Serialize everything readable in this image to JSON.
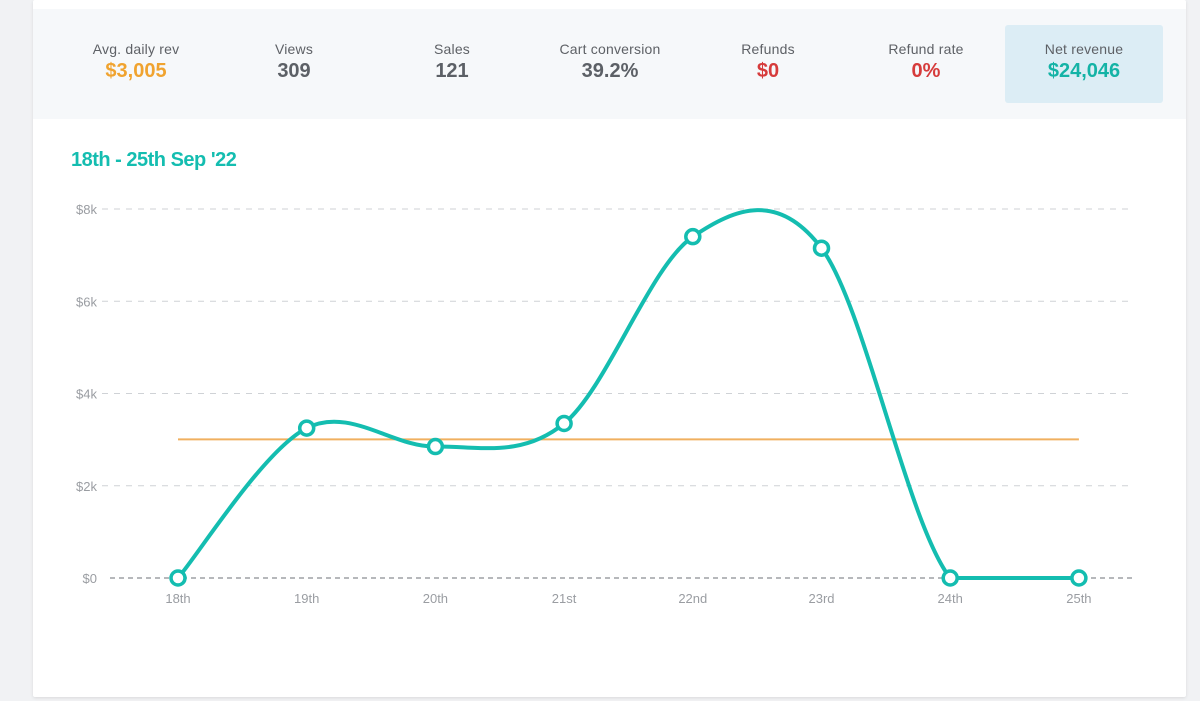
{
  "stats": [
    {
      "label": "Avg. daily rev",
      "value": "$3,005",
      "color": "#f0a32f"
    },
    {
      "label": "Views",
      "value": "309",
      "color": "#5c6066"
    },
    {
      "label": "Sales",
      "value": "121",
      "color": "#5c6066"
    },
    {
      "label": "Cart conversion",
      "value": "39.2%",
      "color": "#5c6066"
    },
    {
      "label": "Refunds",
      "value": "$0",
      "color": "#d63b3b"
    },
    {
      "label": "Refund rate",
      "value": "0%",
      "color": "#d63b3b"
    },
    {
      "label": "Net revenue",
      "value": "$24,046",
      "color": "#14b3a6",
      "active": true
    }
  ],
  "chart_data": {
    "type": "line",
    "title": "18th - 25th Sep '22",
    "categories": [
      "18th",
      "19th",
      "20th",
      "21st",
      "22nd",
      "23rd",
      "24th",
      "25th"
    ],
    "series": [
      {
        "values": [
          0,
          3250,
          2850,
          3350,
          7400,
          7150,
          0,
          0
        ],
        "color": "#14bdb0"
      }
    ],
    "reference_line": {
      "value": 3005,
      "color": "#f0b060"
    },
    "yticks": [
      0,
      2000,
      4000,
      6000,
      8000
    ],
    "ytick_labels": [
      "$0",
      "$2k",
      "$4k",
      "$6k",
      "$8k"
    ],
    "ylim": [
      0,
      8000
    ],
    "grid": true
  }
}
